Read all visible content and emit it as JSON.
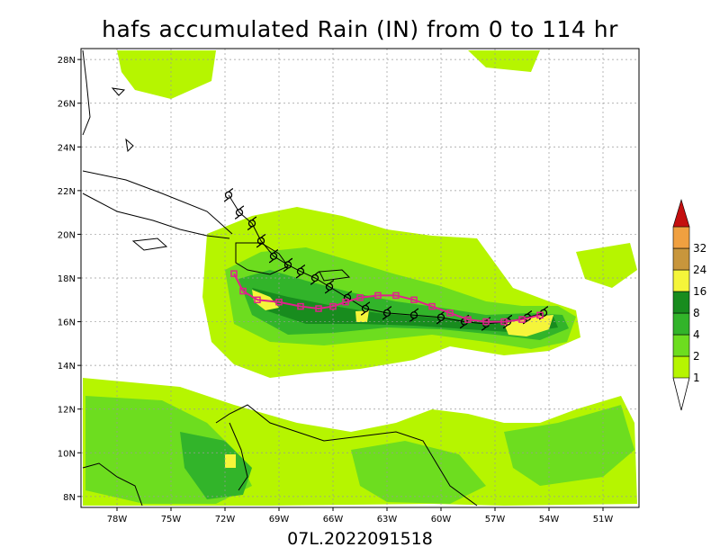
{
  "title": "hafs accumulated Rain (IN) from 0 to 114 hr",
  "footer": "07L.2022091518",
  "map": {
    "lon_range": [
      -80,
      -49
    ],
    "lat_range": [
      7.5,
      28.5
    ],
    "lon_ticks": [
      "78W",
      "75W",
      "72W",
      "69W",
      "66W",
      "63W",
      "60W",
      "57W",
      "54W",
      "51W"
    ],
    "lat_ticks": [
      "28N",
      "26N",
      "24N",
      "22N",
      "20N",
      "18N",
      "16N",
      "14N",
      "12N",
      "10N",
      "8N"
    ]
  },
  "colorbar": {
    "levels": [
      {
        "label": "1",
        "color": "#b6f500"
      },
      {
        "label": "2",
        "color": "#6ddd1f"
      },
      {
        "label": "4",
        "color": "#32b42a"
      },
      {
        "label": "8",
        "color": "#188c1e"
      },
      {
        "label": "16",
        "color": "#f5f53a"
      },
      {
        "label": "24",
        "color": "#c8963c"
      },
      {
        "label": "32",
        "color": "#f0a040"
      }
    ],
    "top_color": "#c40f0f"
  },
  "track_colors": {
    "hafs": "#e0228c",
    "best": "#000000"
  }
}
